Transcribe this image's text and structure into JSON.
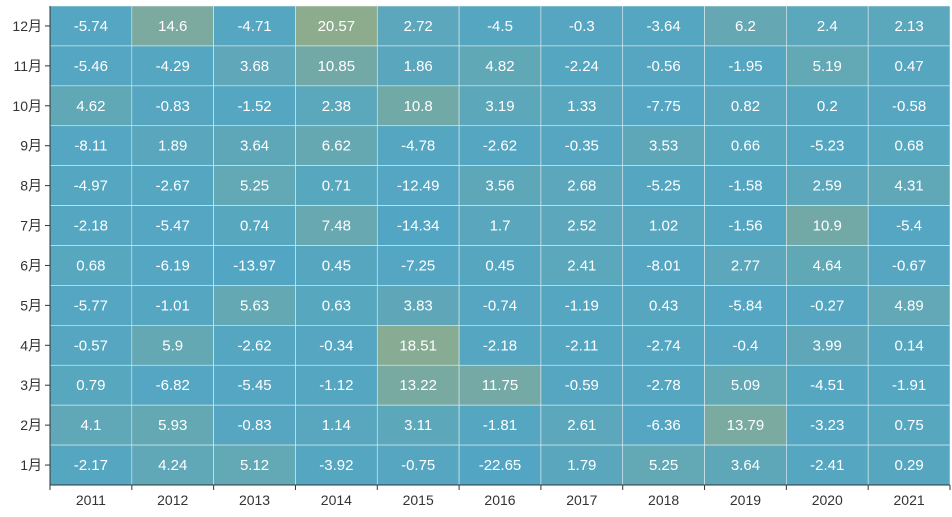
{
  "chart_data": {
    "type": "heatmap",
    "title": "",
    "xlabel": "",
    "ylabel": "",
    "x_categories": [
      "2011",
      "2012",
      "2013",
      "2014",
      "2015",
      "2016",
      "2017",
      "2018",
      "2019",
      "2020",
      "2021"
    ],
    "y_categories": [
      "12月",
      "11月",
      "10月",
      "9月",
      "8月",
      "7月",
      "6月",
      "5月",
      "4月",
      "3月",
      "2月",
      "1月"
    ],
    "values": [
      [
        -5.74,
        14.6,
        -4.71,
        20.57,
        2.72,
        -4.5,
        -0.3,
        -3.64,
        6.2,
        2.4,
        2.13
      ],
      [
        -5.46,
        -4.29,
        3.68,
        10.85,
        1.86,
        4.82,
        -2.24,
        -0.56,
        -1.95,
        5.19,
        0.47
      ],
      [
        4.62,
        -0.83,
        -1.52,
        2.38,
        10.8,
        3.19,
        1.33,
        -7.75,
        0.82,
        0.2,
        -0.58
      ],
      [
        -8.11,
        1.89,
        3.64,
        6.62,
        -4.78,
        -2.62,
        -0.35,
        3.53,
        0.66,
        -5.23,
        0.68
      ],
      [
        -4.97,
        -2.67,
        5.25,
        0.71,
        -12.49,
        3.56,
        2.68,
        -5.25,
        -1.58,
        2.59,
        4.31
      ],
      [
        -2.18,
        -5.47,
        0.74,
        7.48,
        -14.34,
        1.7,
        2.52,
        1.02,
        -1.56,
        10.9,
        -5.4
      ],
      [
        0.68,
        -6.19,
        -13.97,
        0.45,
        -7.25,
        0.45,
        2.41,
        -8.01,
        2.77,
        4.64,
        -0.67
      ],
      [
        -5.77,
        -1.01,
        5.63,
        0.63,
        3.83,
        -0.74,
        -1.19,
        0.43,
        -5.84,
        -0.27,
        4.89
      ],
      [
        -0.57,
        5.9,
        -2.62,
        -0.34,
        18.51,
        -2.18,
        -2.11,
        -2.74,
        -0.4,
        3.99,
        0.14
      ],
      [
        0.79,
        -6.82,
        -5.45,
        -1.12,
        13.22,
        11.75,
        -0.59,
        -2.78,
        5.09,
        -4.51,
        -1.91
      ],
      [
        4.1,
        5.93,
        -0.83,
        1.14,
        3.11,
        -1.81,
        2.61,
        -6.36,
        13.79,
        -3.23,
        0.75
      ],
      [
        -2.17,
        4.24,
        5.12,
        -3.92,
        -0.75,
        -22.65,
        1.79,
        5.25,
        3.64,
        -2.41,
        0.29
      ]
    ],
    "value_range": [
      -22.65,
      20.57
    ],
    "colors": {
      "low": "#52a6c4",
      "high": "#8dac8e",
      "text": "#ffffff",
      "axis": "#333333",
      "grid": "#e6eff3"
    },
    "grid": true,
    "legend": "none"
  }
}
